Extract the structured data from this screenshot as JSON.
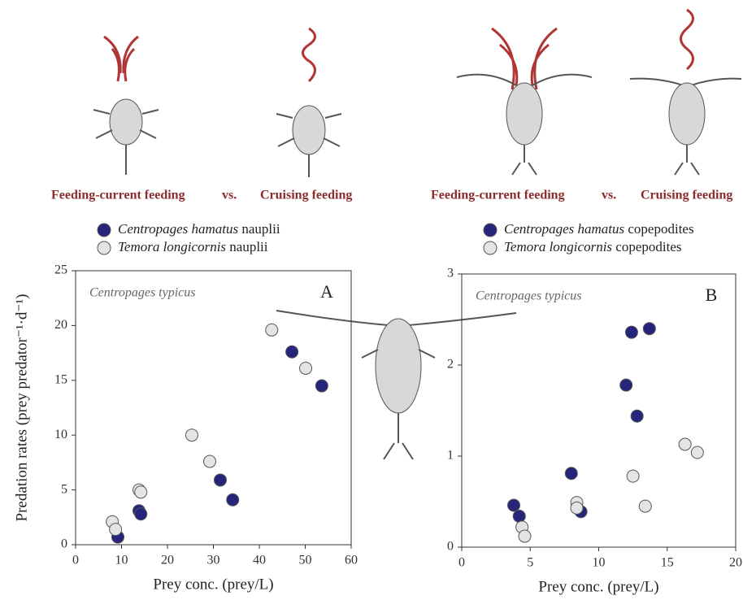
{
  "header": {
    "left": {
      "left_label": "Feeding-current feeding",
      "vs": "vs.",
      "right_label": "Cruising feeding"
    },
    "right": {
      "left_label": "Feeding-current feeding",
      "vs": "vs.",
      "right_label": "Cruising feeding"
    }
  },
  "chart_data": [
    {
      "type": "scatter",
      "panel": "A",
      "annotation": "Centropages typicus",
      "x_label": "Prey conc. (prey/L)",
      "y_label": "Predation rates (prey predator⁻¹·d⁻¹)",
      "xlim": [
        0,
        60
      ],
      "xticks": [
        0,
        10,
        20,
        30,
        40,
        50,
        60
      ],
      "ylim": [
        0,
        25
      ],
      "yticks": [
        0,
        5,
        10,
        15,
        20,
        25
      ],
      "series": [
        {
          "name": "Centropages hamatus nauplii",
          "color": "#25257c",
          "x": [
            9.2,
            13.8,
            14.2,
            31.5,
            34.2,
            47.1,
            53.6
          ],
          "values": [
            0.7,
            3.1,
            2.8,
            5.9,
            4.1,
            17.6,
            14.5
          ]
        },
        {
          "name": "Temora longicornis nauplii",
          "color": "#e4e4e4",
          "x": [
            8.0,
            8.7,
            13.8,
            14.2,
            25.3,
            29.2,
            42.7,
            50.1
          ],
          "values": [
            2.1,
            1.4,
            5.0,
            4.8,
            10.0,
            7.6,
            19.6,
            16.1
          ]
        }
      ]
    },
    {
      "type": "scatter",
      "panel": "B",
      "annotation": "Centropages typicus",
      "x_label": "Prey conc. (prey/L)",
      "xlim": [
        0,
        20
      ],
      "xticks": [
        0,
        5,
        10,
        15,
        20
      ],
      "ylim": [
        0,
        3
      ],
      "yticks": [
        0,
        1,
        2,
        3
      ],
      "series": [
        {
          "name": "Centropages hamatus copepodites",
          "color": "#25257c",
          "x": [
            3.8,
            4.2,
            8.7,
            8.0,
            12.0,
            12.4,
            12.8,
            13.7
          ],
          "values": [
            0.46,
            0.34,
            0.39,
            0.81,
            1.78,
            2.36,
            1.44,
            2.4
          ]
        },
        {
          "name": "Temora longicornis copepodites",
          "color": "#e4e4e4",
          "x": [
            4.4,
            4.6,
            8.4,
            8.4,
            12.5,
            13.4,
            16.3,
            17.2
          ],
          "values": [
            0.22,
            0.12,
            0.49,
            0.43,
            0.78,
            0.45,
            1.13,
            1.04
          ]
        }
      ]
    }
  ]
}
